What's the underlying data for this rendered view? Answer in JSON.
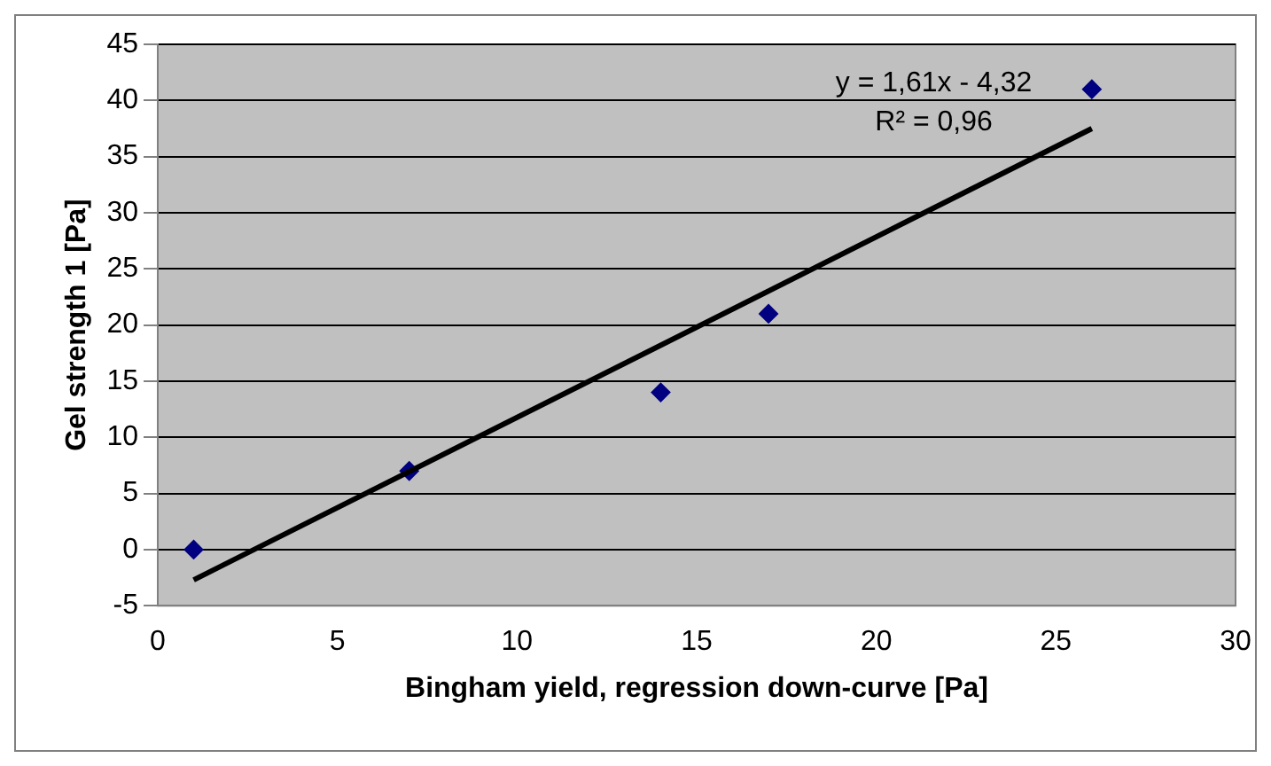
{
  "chart_data": {
    "type": "scatter",
    "xlabel": "Bingham yield, regression down-curve [Pa]",
    "ylabel": "Gel strength 1 [Pa]",
    "series": [
      {
        "type": "scatter",
        "marker": "diamond",
        "color": "#000080",
        "x": [
          1,
          7,
          14,
          17,
          26
        ],
        "values": [
          0,
          7,
          14,
          21,
          41
        ]
      },
      {
        "type": "line",
        "marker": "none",
        "color": "#000000",
        "x": [
          1,
          26
        ],
        "values": [
          -2.7,
          37.5
        ]
      }
    ],
    "xlim": [
      0,
      30
    ],
    "xticks": [
      0,
      5,
      10,
      15,
      20,
      25,
      30
    ],
    "ylim": [
      -5,
      45
    ],
    "yticks": [
      -5,
      0,
      5,
      10,
      15,
      20,
      25,
      30,
      35,
      40,
      45
    ],
    "grid": "y",
    "legend": false,
    "annotations": [
      "y = 1,61x - 4,32",
      "R² = 0,96"
    ]
  }
}
